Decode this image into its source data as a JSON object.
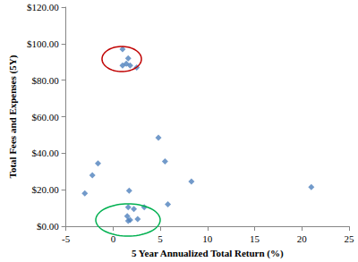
{
  "chart_data": {
    "type": "scatter",
    "x_label": "5 Year Annualized Total Return (%)",
    "y_label": "Total Fees and Expenses (5Y)",
    "x": [
      1.0,
      1.6,
      1.0,
      1.4,
      1.8,
      2.5,
      -3.0,
      -2.2,
      -1.6,
      4.8,
      5.5,
      8.3,
      21.0,
      5.8,
      1.7,
      1.6,
      2.2,
      1.5,
      1.8,
      1.6,
      2.6,
      3.3
    ],
    "values": [
      97,
      92,
      88,
      89,
      88,
      87,
      18,
      28,
      34.5,
      48.5,
      35.5,
      24.5,
      21.5,
      12,
      19.5,
      10.5,
      9.5,
      5.5,
      3.5,
      3,
      4,
      10.5
    ],
    "color": "#4f81bd",
    "marker": "diamond",
    "xlim": [
      -5,
      25
    ],
    "xticks": [
      -5,
      0,
      5,
      10,
      15,
      20,
      25
    ],
    "ylim": [
      0,
      120
    ],
    "yticks": [
      {
        "value": 0,
        "label": "$0.00"
      },
      {
        "value": 20,
        "label": "$20.00"
      },
      {
        "value": 40,
        "label": "$40.00"
      },
      {
        "value": 60,
        "label": "$60.00"
      },
      {
        "value": 80,
        "label": "$80.00"
      },
      {
        "value": 100,
        "label": "$100.00"
      },
      {
        "value": 120,
        "label": "$120.00"
      }
    ],
    "grid": false
  }
}
